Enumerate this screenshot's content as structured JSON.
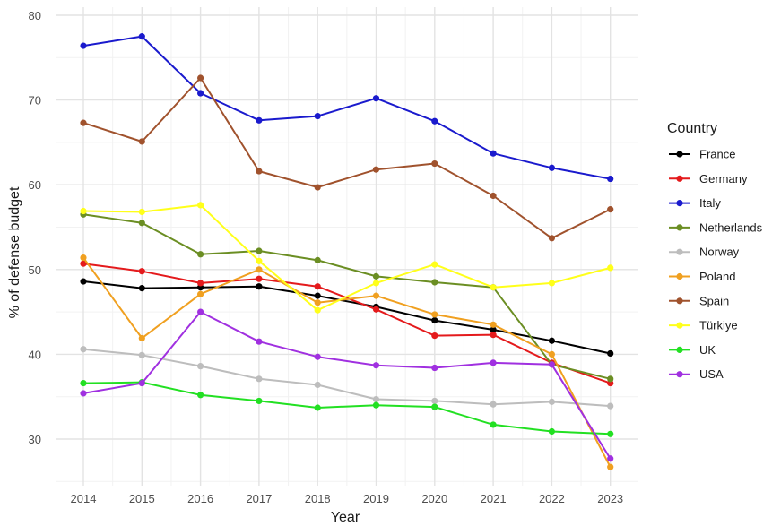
{
  "chart_data": {
    "type": "line",
    "xlabel": "Year",
    "ylabel": "% of defense budget",
    "x": [
      2014,
      2015,
      2016,
      2017,
      2018,
      2019,
      2020,
      2021,
      2022,
      2023
    ],
    "ylim": [
      25,
      80
    ],
    "yticks": [
      30,
      40,
      50,
      60,
      70,
      80
    ],
    "grid": true,
    "legend": {
      "title": "Country",
      "position": "right"
    },
    "series": [
      {
        "name": "France",
        "color": "#000000",
        "values": [
          48.6,
          47.8,
          47.9,
          48.0,
          46.9,
          45.6,
          44.0,
          42.9,
          41.6,
          40.1
        ]
      },
      {
        "name": "Germany",
        "color": "#e41a1c",
        "values": [
          50.7,
          49.8,
          48.4,
          48.9,
          48.0,
          45.3,
          42.2,
          42.3,
          39.0,
          36.6
        ]
      },
      {
        "name": "Italy",
        "color": "#1a1acd",
        "values": [
          76.4,
          77.5,
          70.8,
          67.6,
          68.1,
          70.2,
          67.5,
          63.7,
          62.0,
          60.7
        ]
      },
      {
        "name": "Netherlands",
        "color": "#6b8e23",
        "values": [
          56.5,
          55.5,
          51.8,
          52.2,
          51.1,
          49.2,
          48.5,
          47.9,
          38.8,
          37.1
        ]
      },
      {
        "name": "Norway",
        "color": "#bdbdbd",
        "values": [
          40.6,
          39.9,
          38.6,
          37.1,
          36.4,
          34.7,
          34.5,
          34.1,
          34.4,
          33.9
        ]
      },
      {
        "name": "Poland",
        "color": "#f0a020",
        "values": [
          51.4,
          41.9,
          47.1,
          50.0,
          46.1,
          46.9,
          44.7,
          43.5,
          40.0,
          26.7
        ]
      },
      {
        "name": "Spain",
        "color": "#a0522d",
        "values": [
          67.3,
          65.1,
          72.6,
          61.6,
          59.7,
          61.8,
          62.5,
          58.7,
          53.7,
          57.1
        ]
      },
      {
        "name": "Türkiye",
        "color": "#ffff1a",
        "values": [
          56.9,
          56.8,
          57.6,
          51.0,
          45.2,
          48.4,
          50.6,
          47.9,
          48.4,
          50.2
        ]
      },
      {
        "name": "UK",
        "color": "#22e022",
        "values": [
          36.6,
          36.7,
          35.2,
          34.5,
          33.7,
          34.0,
          33.8,
          31.7,
          30.9,
          30.6
        ]
      },
      {
        "name": "USA",
        "color": "#a030e0",
        "values": [
          35.4,
          36.6,
          45.0,
          41.5,
          39.7,
          38.7,
          38.4,
          39.0,
          38.8,
          27.7
        ]
      }
    ]
  }
}
